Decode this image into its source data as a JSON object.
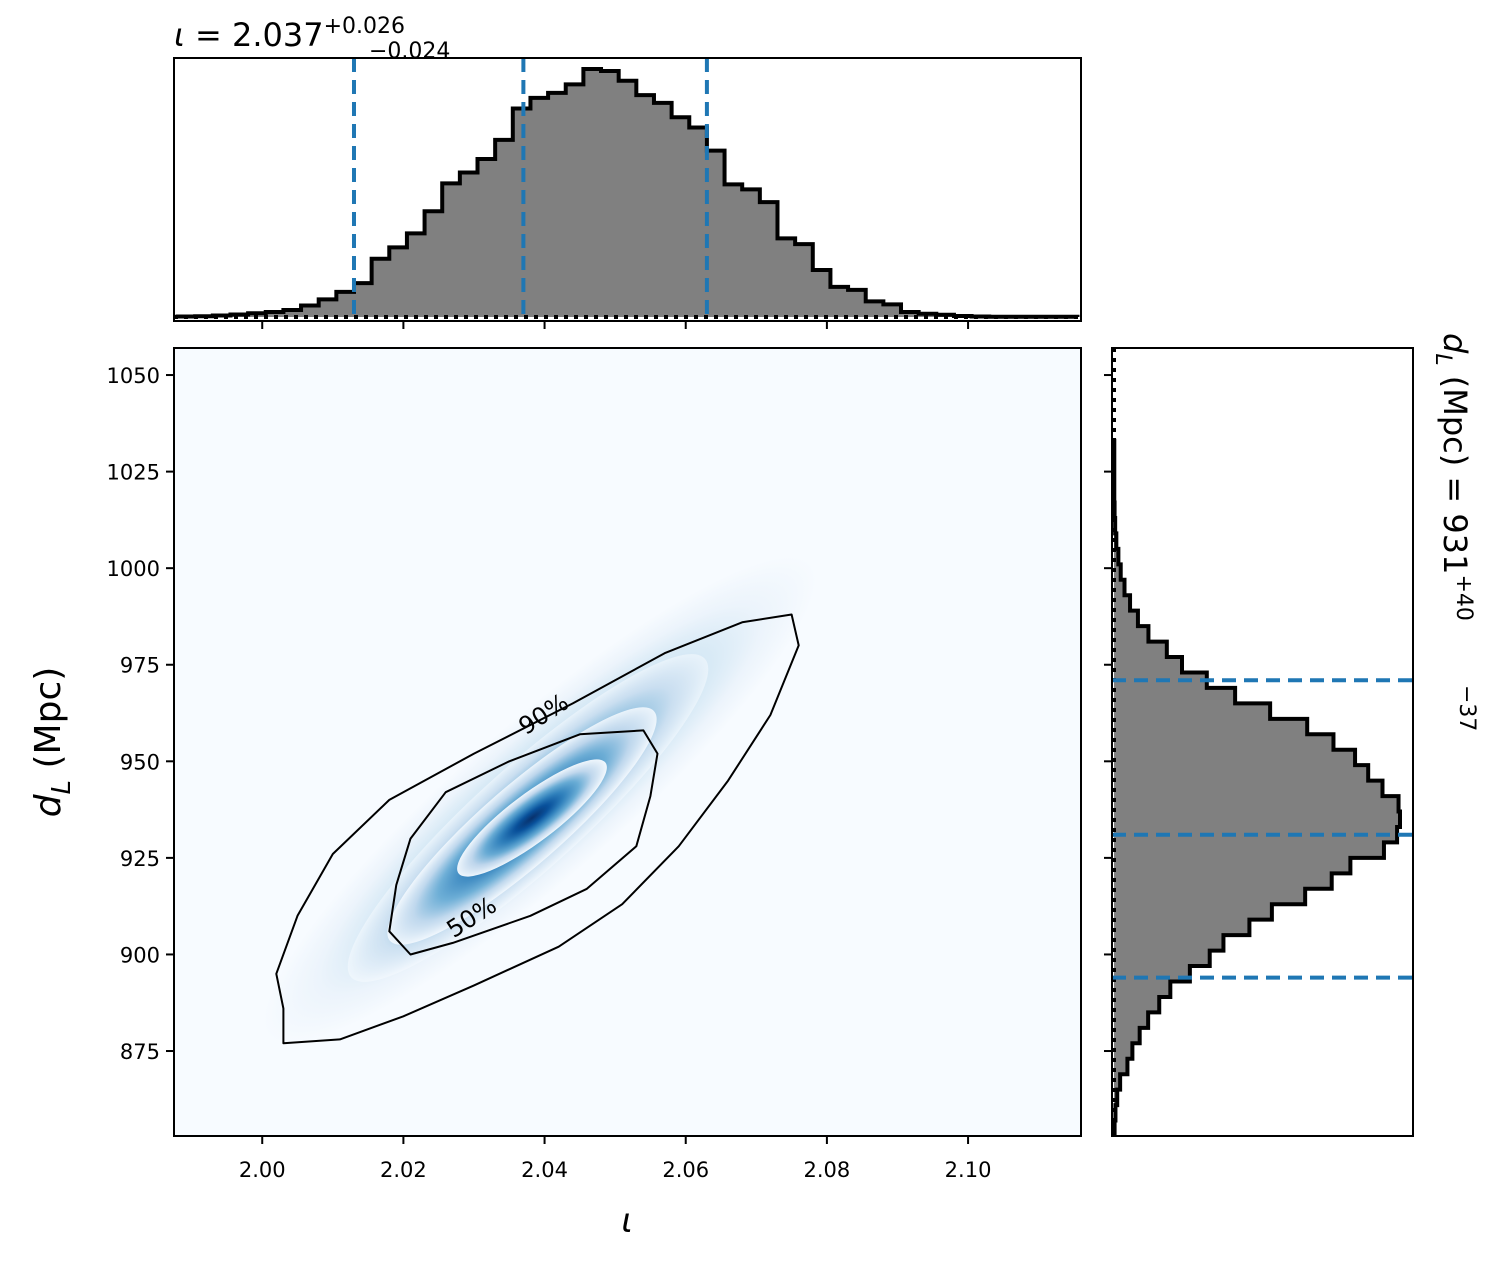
{
  "chart_data": {
    "type": "corner",
    "panels": {
      "top_histogram": {
        "type": "histogram",
        "title": {
          "symbol": "ι",
          "value": "2.037",
          "upper": "+0.026",
          "lower": "−0.024"
        },
        "median": 2.037,
        "interval": [
          2.013,
          2.063
        ],
        "bins": {
          "start": 1.988,
          "width": 0.0025
        },
        "density": [
          0.002,
          0.003,
          0.006,
          0.01,
          0.015,
          0.02,
          0.028,
          0.046,
          0.07,
          0.1,
          0.135,
          0.232,
          0.277,
          0.333,
          0.421,
          0.532,
          0.575,
          0.629,
          0.705,
          0.83,
          0.872,
          0.892,
          0.926,
          0.987,
          0.979,
          0.94,
          0.883,
          0.852,
          0.795,
          0.754,
          0.662,
          0.528,
          0.508,
          0.457,
          0.313,
          0.29,
          0.187,
          0.12,
          0.108,
          0.062,
          0.05,
          0.02,
          0.013,
          0.009,
          0.004,
          0.002,
          0.001,
          0.001,
          0.001,
          0.001,
          0.001
        ],
        "xlim": [
          1.9875,
          2.116
        ]
      },
      "joint_density": {
        "type": "heatmap",
        "xlabel": "ι",
        "ylabel": {
          "symbol": "d",
          "sub": "L",
          "unit": "(Mpc)"
        },
        "xlim": [
          1.9875,
          2.116
        ],
        "ylim": [
          853,
          1057
        ],
        "xticks": [
          "2.00",
          "2.02",
          "2.04",
          "2.06",
          "2.08",
          "2.10"
        ],
        "yticks": [
          "875",
          "900",
          "925",
          "950",
          "975",
          "1000",
          "1025",
          "1050"
        ],
        "colormap": "Blues",
        "contours": [
          {
            "level": "50%",
            "points": [
              [
                2.021,
                900
              ],
              [
                2.027,
                903
              ],
              [
                2.038,
                910
              ],
              [
                2.046,
                917
              ],
              [
                2.053,
                928
              ],
              [
                2.055,
                941
              ],
              [
                2.056,
                952
              ],
              [
                2.054,
                958
              ],
              [
                2.045,
                957
              ],
              [
                2.035,
                950
              ],
              [
                2.026,
                942
              ],
              [
                2.021,
                930
              ],
              [
                2.019,
                918
              ],
              [
                2.018,
                906
              ]
            ]
          },
          {
            "level": "90%",
            "points": [
              [
                2.003,
                877
              ],
              [
                2.011,
                878
              ],
              [
                2.02,
                884
              ],
              [
                2.03,
                892
              ],
              [
                2.042,
                902
              ],
              [
                2.051,
                913
              ],
              [
                2.059,
                928
              ],
              [
                2.066,
                945
              ],
              [
                2.072,
                962
              ],
              [
                2.076,
                980
              ],
              [
                2.075,
                988
              ],
              [
                2.068,
                986
              ],
              [
                2.057,
                978
              ],
              [
                2.044,
                965
              ],
              [
                2.03,
                952
              ],
              [
                2.018,
                940
              ],
              [
                2.01,
                926
              ],
              [
                2.005,
                910
              ],
              [
                2.002,
                895
              ],
              [
                2.003,
                886
              ]
            ]
          }
        ],
        "contour_labels": [
          "90%",
          "50%"
        ]
      },
      "right_histogram": {
        "type": "histogram",
        "orientation": "horizontal",
        "title": {
          "symbol": "d",
          "sub": "L",
          "unit": "(Mpc) =",
          "value": "931",
          "upper": "+40",
          "lower": "−37"
        },
        "median": 931,
        "interval": [
          894,
          971
        ],
        "bins": {
          "start": 853,
          "width": 4
        },
        "density": [
          0.002,
          0.005,
          0.011,
          0.021,
          0.046,
          0.063,
          0.088,
          0.117,
          0.155,
          0.193,
          0.26,
          0.328,
          0.375,
          0.464,
          0.541,
          0.655,
          0.746,
          0.81,
          0.925,
          0.97,
          0.98,
          0.975,
          0.92,
          0.871,
          0.826,
          0.752,
          0.662,
          0.535,
          0.415,
          0.318,
          0.233,
          0.181,
          0.118,
          0.082,
          0.055,
          0.036,
          0.023,
          0.015,
          0.008,
          0.004,
          0.002,
          0.001,
          0.001,
          0.001,
          0.001
        ],
        "ylim": [
          853,
          1057
        ]
      }
    }
  }
}
